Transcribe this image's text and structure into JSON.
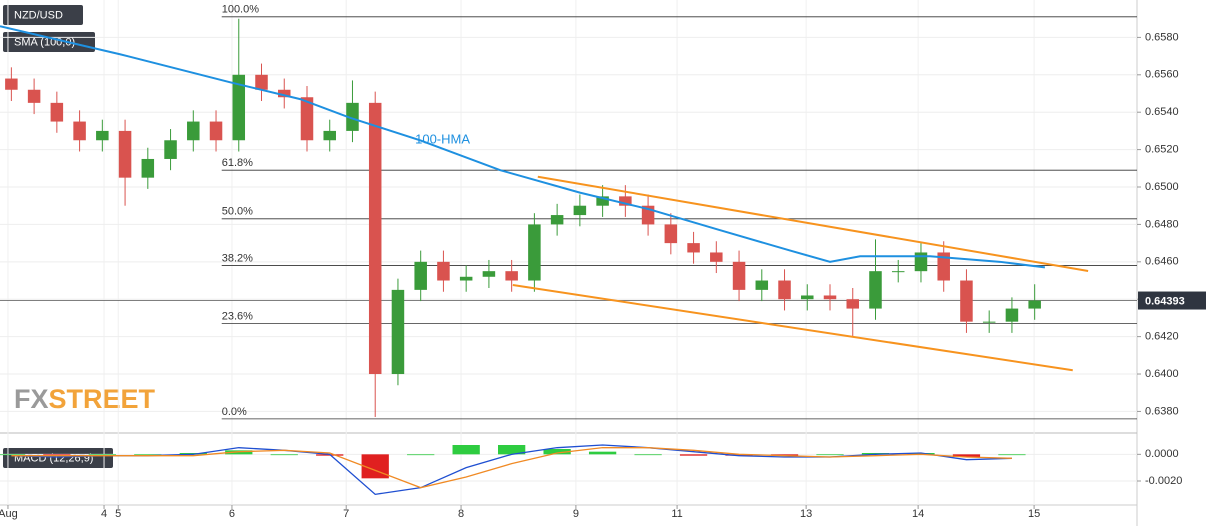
{
  "chart_data": [
    {
      "type": "candlestick",
      "title": "NZD/USD",
      "indicator": "SMA (100,0)",
      "logo": {
        "prefix": "FX",
        "suffix": "STREET"
      },
      "x": [
        2,
        6,
        10,
        14,
        18,
        22,
        26,
        30,
        34,
        38,
        42,
        46,
        50,
        54,
        58,
        62,
        66,
        70,
        74,
        78,
        82,
        86,
        90,
        94,
        98,
        102,
        106,
        110,
        114,
        118,
        122,
        126,
        130,
        134,
        138,
        142,
        146,
        150,
        154,
        158,
        162,
        166,
        170,
        174,
        178,
        182
      ],
      "open": [
        0.6558,
        0.6552,
        0.6545,
        0.6535,
        0.6525,
        0.653,
        0.6505,
        0.6515,
        0.6525,
        0.6535,
        0.6525,
        0.656,
        0.6552,
        0.6548,
        0.6525,
        0.653,
        0.6545,
        0.64,
        0.6445,
        0.646,
        0.645,
        0.6452,
        0.6455,
        0.645,
        0.648,
        0.6485,
        0.649,
        0.6495,
        0.649,
        0.648,
        0.647,
        0.6465,
        0.646,
        0.6445,
        0.645,
        0.644,
        0.6442,
        0.644,
        0.6435,
        0.6455,
        0.6455,
        0.6465,
        0.645,
        0.6428,
        0.6428,
        0.6435
      ],
      "high": [
        0.6564,
        0.6558,
        0.6551,
        0.6541,
        0.6536,
        0.6536,
        0.6521,
        0.6531,
        0.6541,
        0.6541,
        0.659,
        0.6566,
        0.6558,
        0.6554,
        0.6536,
        0.6557,
        0.6551,
        0.6451,
        0.6466,
        0.6466,
        0.6458,
        0.6461,
        0.6461,
        0.6486,
        0.6491,
        0.6496,
        0.6501,
        0.6501,
        0.6496,
        0.6486,
        0.6476,
        0.6471,
        0.6466,
        0.6456,
        0.6456,
        0.6448,
        0.6448,
        0.6446,
        0.6472,
        0.6461,
        0.647,
        0.6471,
        0.6456,
        0.6434,
        0.6441,
        0.6448
      ],
      "low": [
        0.6546,
        0.6539,
        0.6529,
        0.6519,
        0.6519,
        0.649,
        0.6499,
        0.6509,
        0.6519,
        0.6519,
        0.6519,
        0.6546,
        0.6542,
        0.6519,
        0.6519,
        0.6524,
        0.6377,
        0.6394,
        0.6439,
        0.6444,
        0.6444,
        0.6446,
        0.6444,
        0.6444,
        0.6474,
        0.6479,
        0.6484,
        0.6484,
        0.6474,
        0.6464,
        0.6459,
        0.6454,
        0.6439,
        0.6439,
        0.6434,
        0.6434,
        0.6434,
        0.642,
        0.6429,
        0.6449,
        0.6449,
        0.6444,
        0.6422,
        0.6422,
        0.6422,
        0.6429
      ],
      "close": [
        0.6552,
        0.6545,
        0.6535,
        0.6525,
        0.653,
        0.6505,
        0.6515,
        0.6525,
        0.6535,
        0.6525,
        0.656,
        0.6552,
        0.6548,
        0.6525,
        0.653,
        0.6545,
        0.64,
        0.6445,
        0.646,
        0.645,
        0.6452,
        0.6455,
        0.645,
        0.648,
        0.6485,
        0.649,
        0.6495,
        0.649,
        0.648,
        0.647,
        0.6465,
        0.646,
        0.6445,
        0.645,
        0.644,
        0.6442,
        0.644,
        0.6435,
        0.6455,
        0.6455,
        0.6465,
        0.645,
        0.6428,
        0.6428,
        0.6435,
        0.64393
      ],
      "up_color": "#3a9b3a",
      "down_color": "#d9534f",
      "last_price": 0.64393,
      "lines": [
        {
          "name": "100-HMA",
          "color": "#1e90e0",
          "x": [
            0,
            21.1,
            40.5,
            52.8,
            61.6,
            73.9,
            88,
            102,
            114.3,
            126.6,
            139,
            146,
            151.3,
            163.6,
            175.9,
            183.8
          ],
          "values": [
            0.6586,
            0.6571,
            0.6556,
            0.6547,
            0.6537,
            0.6525,
            0.6509,
            0.6497,
            0.6488,
            0.6477,
            0.6466,
            0.646,
            0.6463,
            0.6463,
            0.646,
            0.6457
          ]
        }
      ],
      "trendlines": [
        {
          "color": "#f7931e",
          "x": [
            94.6,
            191.4
          ],
          "values": [
            0.65055,
            0.64551
          ]
        },
        {
          "color": "#f7931e",
          "x": [
            90.2,
            188.7
          ],
          "values": [
            0.64476,
            0.6402
          ]
        }
      ],
      "levels_start": 39,
      "levels": [
        {
          "value": 0.6591,
          "label": "100.0%"
        },
        {
          "value": 0.6509,
          "label": "61.8%"
        },
        {
          "value": 0.6483,
          "label": "50.0%"
        },
        {
          "value": 0.6458,
          "label": "38.2%"
        },
        {
          "value": 0.6427,
          "label": "23.6%"
        },
        {
          "value": 0.6376,
          "label": "0.0%"
        }
      ],
      "xlim": [
        0,
        200
      ],
      "xticks": [
        {
          "value": 1.4,
          "label": "Aug"
        },
        {
          "value": 18.3,
          "label": "4"
        },
        {
          "value": 20.8,
          "label": "5"
        },
        {
          "value": 40.8,
          "label": "6"
        },
        {
          "value": 60.9,
          "label": "7"
        },
        {
          "value": 81.1,
          "label": "8"
        },
        {
          "value": 101.3,
          "label": "9"
        },
        {
          "value": 119.1,
          "label": "11"
        },
        {
          "value": 141.8,
          "label": "13"
        },
        {
          "value": 161.5,
          "label": "14"
        },
        {
          "value": 181.9,
          "label": "15"
        }
      ],
      "ylim": [
        0.6369,
        0.66
      ],
      "yticks": [
        {
          "value": 0.638,
          "label": "0.6380"
        },
        {
          "value": 0.64,
          "label": "0.6400"
        },
        {
          "value": 0.642,
          "label": "0.6420"
        },
        {
          "value": 0.644,
          "label": "0.6440"
        },
        {
          "value": 0.646,
          "label": "0.6460"
        },
        {
          "value": 0.648,
          "label": "0.6480"
        },
        {
          "value": 0.65,
          "label": "0.6500"
        },
        {
          "value": 0.652,
          "label": "0.6520"
        },
        {
          "value": 0.654,
          "label": "0.6540"
        },
        {
          "value": 0.656,
          "label": "0.6560"
        },
        {
          "value": 0.658,
          "label": "0.6580"
        }
      ],
      "grid": true
    },
    {
      "type": "macd",
      "title": "MACD (12,26,9)",
      "x": [
        2,
        10,
        18,
        26,
        34,
        42,
        50,
        58,
        66,
        74,
        82,
        90,
        98,
        106,
        114,
        122,
        130,
        138,
        146,
        154,
        162,
        170,
        178
      ],
      "histogram": {
        "up_color": "#2ecc40",
        "down_color": "#e02020",
        "values": [
          0,
          -0.0001,
          0,
          0,
          0.0001,
          0.0003,
          0,
          -0.0001,
          -0.0018,
          0,
          0.0007,
          0.0007,
          0.0004,
          0.0002,
          0,
          -0.0001,
          -0.0001,
          -0.0001,
          0,
          0.0001,
          0.0001,
          -0.0002,
          0
        ]
      },
      "lines": [
        {
          "color": "#1f4fd1",
          "values": [
            -0.0001,
            -0.0002,
            -0.0001,
            -0.0001,
            0,
            0.0005,
            0.0003,
            0,
            -0.003,
            -0.0025,
            -0.001,
            0,
            0.0005,
            0.0007,
            0.0005,
            0.0002,
            -0.0001,
            -0.0002,
            -0.0002,
            0,
            0.0001,
            -0.0004,
            -0.0003
          ]
        },
        {
          "color": "#f08a24",
          "values": [
            -0.0001,
            -0.0001,
            -0.0001,
            -0.0001,
            -0.0001,
            0.0002,
            0.0003,
            0.0001,
            -0.0012,
            -0.0025,
            -0.0017,
            -0.0007,
            0.0001,
            0.0005,
            0.0005,
            0.0003,
            0,
            -0.0001,
            -0.0002,
            -0.0001,
            0,
            -0.0002,
            -0.0003
          ]
        }
      ],
      "ylim": [
        -0.0038,
        0.0013
      ],
      "yticks": [
        {
          "value": 0,
          "label": "0.0000"
        },
        {
          "value": -0.002,
          "label": "-0.0020"
        }
      ],
      "grid": true
    }
  ]
}
